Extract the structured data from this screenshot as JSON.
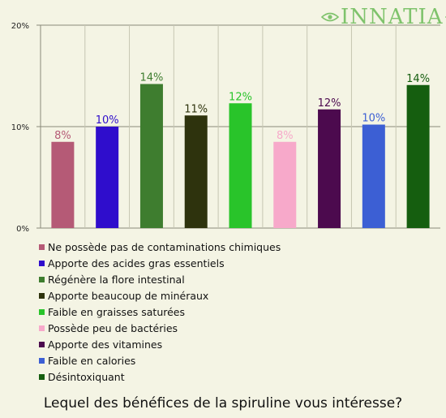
{
  "brand": {
    "name": "INNATIA",
    "color": "#7fc36c"
  },
  "chart_data": {
    "type": "bar",
    "title": "Lequel des bénéfices de la spiruline vous intéresse?",
    "ylim": [
      0,
      20
    ],
    "yticks": [
      "0%",
      "10%",
      "20%"
    ],
    "ytick_values": [
      0,
      10,
      20
    ],
    "grid": true,
    "legend_position": "bottom",
    "bars": [
      {
        "name": "Ne possède pas de contaminations chimiques",
        "value": 8.5,
        "label": "8%",
        "color": "#b55a76"
      },
      {
        "name": "Apporte des acides gras essentiels",
        "value": 10,
        "label": "10%",
        "color": "#2f0dcc"
      },
      {
        "name": "Régénère la flore intestinal",
        "value": 14.2,
        "label": "14%",
        "color": "#3e7d2f"
      },
      {
        "name": "Apporte beaucoup de minéraux",
        "value": 11.1,
        "label": "11%",
        "color": "#2e330d"
      },
      {
        "name": "Faible en graisses saturées",
        "value": 12.3,
        "label": "12%",
        "color": "#29c42a"
      },
      {
        "name": "Possède peu de bactéries",
        "value": 8.5,
        "label": "8%",
        "color": "#f7a9ca"
      },
      {
        "name": "Apporte des vitamines",
        "value": 11.7,
        "label": "12%",
        "color": "#4c0a4e"
      },
      {
        "name": "Faible en calories",
        "value": 10.2,
        "label": "10%",
        "color": "#3c5fd4"
      },
      {
        "name": "Désintoxiquant",
        "value": 14.1,
        "label": "14%",
        "color": "#155e0f"
      }
    ]
  }
}
